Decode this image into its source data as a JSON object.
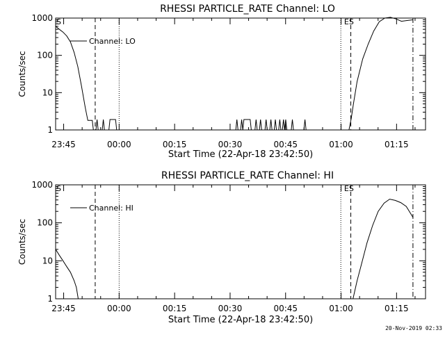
{
  "footer_timestamp": "20-Nov-2019 02:33",
  "x_axis": {
    "label": "Start Time (22-Apr-18 23:42:50)",
    "ticks": [
      {
        "t": 2.17,
        "label": "23:45"
      },
      {
        "t": 17.17,
        "label": "00:00"
      },
      {
        "t": 32.17,
        "label": "00:15"
      },
      {
        "t": 47.17,
        "label": "00:30"
      },
      {
        "t": 62.17,
        "label": "00:45"
      },
      {
        "t": 77.17,
        "label": "01:00"
      },
      {
        "t": 92.17,
        "label": "01:15"
      }
    ],
    "range_minutes": [
      0,
      100
    ]
  },
  "chart_data": [
    {
      "type": "line",
      "title": "RHESSI PARTICLE_RATE Channel: LO",
      "ylabel": "Counts/sec",
      "yscale": "log",
      "ylim": [
        1,
        1000
      ],
      "yticks": [
        1,
        10,
        100,
        1000
      ],
      "yticklabels": [
        "1",
        "10",
        "100",
        "1000"
      ],
      "xlim_minutes": [
        0,
        100
      ],
      "legend": {
        "placement": "top-left",
        "label": "Channel: LO"
      },
      "annotations": [
        {
          "label": "S",
          "t": 0
        },
        {
          "label": "ES",
          "t": 77.8
        }
      ],
      "vlines": [
        {
          "t": 10.7,
          "style": "dashed"
        },
        {
          "t": 17.17,
          "style": "dotted"
        },
        {
          "t": 77.1,
          "style": "dotted"
        },
        {
          "t": 79.8,
          "style": "dashed"
        },
        {
          "t": 96.6,
          "style": "dashdot"
        }
      ],
      "series": [
        {
          "name": "Channel: LO",
          "points": [
            [
              0,
              600
            ],
            [
              1,
              500
            ],
            [
              2,
              420
            ],
            [
              3,
              330
            ],
            [
              4,
              230
            ],
            [
              5,
              120
            ],
            [
              6,
              50
            ],
            [
              7,
              15
            ],
            [
              8,
              4
            ],
            [
              8.7,
              1.8
            ],
            [
              9.9,
              1.8
            ],
            [
              10.2,
              1
            ],
            [
              10.9,
              1
            ],
            [
              11.2,
              1.9
            ],
            [
              11.5,
              1
            ],
            [
              12.6,
              1
            ],
            [
              12.9,
              1.9
            ],
            [
              13.2,
              1
            ],
            [
              14.4,
              1
            ],
            [
              14.7,
              1.9
            ],
            [
              16.2,
              1.9
            ],
            [
              16.5,
              1
            ],
            [
              48.7,
              1
            ],
            [
              49.0,
              1.9
            ],
            [
              49.3,
              1
            ],
            [
              50.0,
              1
            ],
            [
              50.3,
              1.9
            ],
            [
              50.6,
              1
            ],
            [
              50.9,
              1.9
            ],
            [
              51.2,
              1.9
            ],
            [
              52.6,
              1.9
            ],
            [
              52.9,
              1
            ],
            [
              53.9,
              1
            ],
            [
              54.2,
              1.9
            ],
            [
              54.5,
              1
            ],
            [
              55.1,
              1
            ],
            [
              55.4,
              1.9
            ],
            [
              55.7,
              1
            ],
            [
              56.6,
              1
            ],
            [
              56.9,
              1.9
            ],
            [
              57.2,
              1
            ],
            [
              57.9,
              1
            ],
            [
              58.2,
              1.9
            ],
            [
              58.5,
              1
            ],
            [
              59.1,
              1
            ],
            [
              59.4,
              1.9
            ],
            [
              59.7,
              1
            ],
            [
              60.3,
              1
            ],
            [
              60.6,
              1.9
            ],
            [
              60.9,
              1
            ],
            [
              61.3,
              1
            ],
            [
              61.6,
              1.9
            ],
            [
              61.9,
              1
            ],
            [
              62.2,
              1.9
            ],
            [
              62.5,
              1
            ],
            [
              63.7,
              1
            ],
            [
              64.0,
              1.9
            ],
            [
              64.3,
              1
            ],
            [
              67.1,
              1
            ],
            [
              67.4,
              1.9
            ],
            [
              67.7,
              1
            ],
            [
              79.3,
              1
            ],
            [
              79.9,
              2
            ],
            [
              80.5,
              5
            ],
            [
              81.5,
              20
            ],
            [
              83,
              80
            ],
            [
              84.5,
              200
            ],
            [
              86,
              450
            ],
            [
              87.5,
              800
            ],
            [
              89,
              1000
            ],
            [
              90.5,
              1050
            ],
            [
              92,
              950
            ],
            [
              93.5,
              820
            ],
            [
              95,
              860
            ],
            [
              96.6,
              900
            ]
          ]
        }
      ]
    },
    {
      "type": "line",
      "title": "RHESSI PARTICLE_RATE Channel: HI",
      "ylabel": "Counts/sec",
      "yscale": "log",
      "ylim": [
        1,
        1000
      ],
      "yticks": [
        1,
        10,
        100,
        1000
      ],
      "yticklabels": [
        "1",
        "10",
        "100",
        "1000"
      ],
      "xlim_minutes": [
        0,
        100
      ],
      "legend": {
        "placement": "top-left",
        "label": "Channel: HI"
      },
      "annotations": [
        {
          "label": "S",
          "t": 0
        },
        {
          "label": "ES",
          "t": 77.8
        }
      ],
      "vlines": [
        {
          "t": 10.7,
          "style": "dashed"
        },
        {
          "t": 17.17,
          "style": "dotted"
        },
        {
          "t": 77.1,
          "style": "dotted"
        },
        {
          "t": 79.8,
          "style": "dashed"
        },
        {
          "t": 96.6,
          "style": "dashdot"
        }
      ],
      "series": [
        {
          "name": "Channel: HI",
          "points": [
            [
              0,
              20
            ],
            [
              1,
              14
            ],
            [
              2,
              10
            ],
            [
              3,
              7
            ],
            [
              4,
              5
            ],
            [
              5,
              3
            ],
            [
              5.6,
              2
            ],
            [
              6.1,
              1
            ],
            [
              80.4,
              1
            ],
            [
              81.5,
              3
            ],
            [
              82.8,
              9
            ],
            [
              84.2,
              30
            ],
            [
              85.7,
              85
            ],
            [
              87.2,
              200
            ],
            [
              88.8,
              330
            ],
            [
              90.3,
              420
            ],
            [
              91.8,
              390
            ],
            [
              93.3,
              340
            ],
            [
              94.8,
              270
            ],
            [
              96.6,
              140
            ]
          ]
        }
      ]
    }
  ]
}
